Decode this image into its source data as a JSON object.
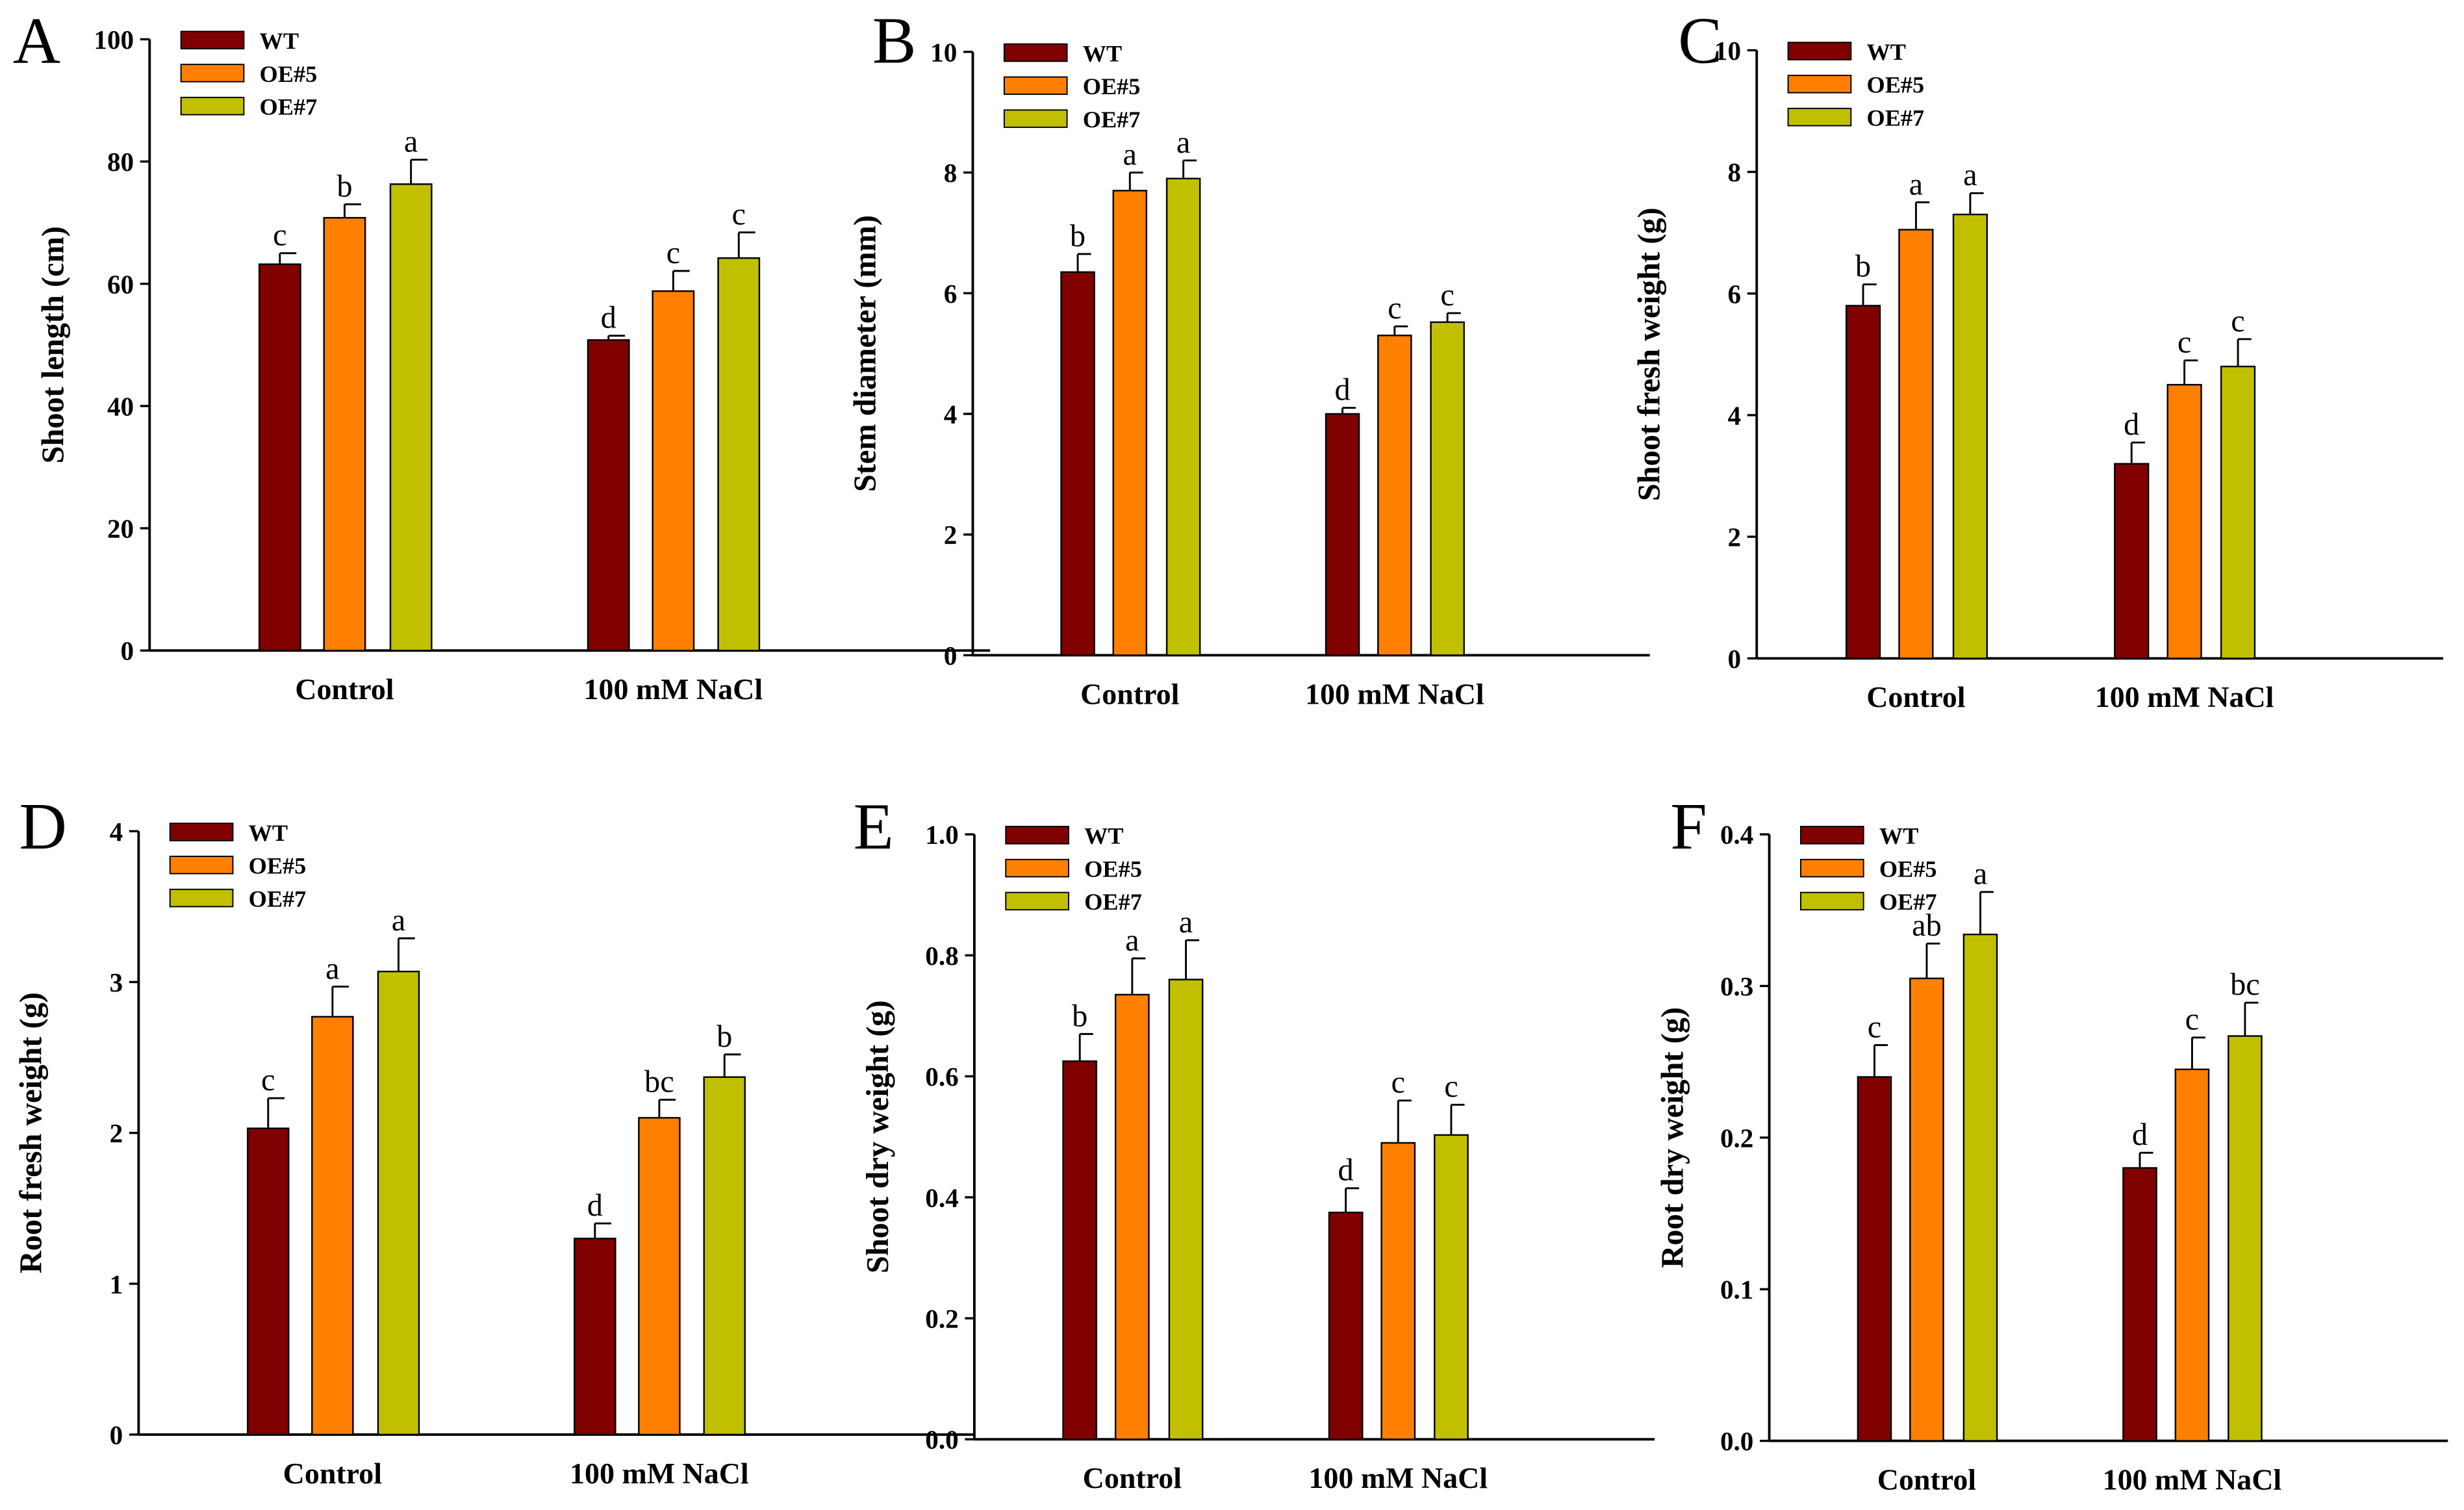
{
  "chart_data": [
    {
      "panel": "A",
      "type": "bar",
      "ylabel": "Shoot length (cm)",
      "ylim": [
        0,
        100
      ],
      "yticks": [
        0,
        20,
        40,
        60,
        80,
        100
      ],
      "ytick_labels": [
        "0",
        "20",
        "40",
        "60",
        "80",
        "100"
      ],
      "categories": [
        "Control",
        "100 mM NaCl"
      ],
      "series": [
        {
          "name": "WT",
          "values": [
            63.2,
            50.8
          ],
          "errors": [
            1.8,
            0.7
          ],
          "letters": [
            "c",
            "d"
          ]
        },
        {
          "name": "OE#5",
          "values": [
            70.8,
            58.8
          ],
          "errors": [
            2.2,
            3.3
          ],
          "letters": [
            "b",
            "c"
          ]
        },
        {
          "name": "OE#7",
          "values": [
            76.3,
            64.2
          ],
          "errors": [
            4.0,
            4.2
          ],
          "letters": [
            "a",
            "c"
          ]
        }
      ],
      "legend": "top-left"
    },
    {
      "panel": "B",
      "type": "bar",
      "ylabel": "Stem diameter (mm)",
      "ylim": [
        0,
        10
      ],
      "yticks": [
        0,
        2,
        4,
        6,
        8,
        10
      ],
      "ytick_labels": [
        "0",
        "2",
        "4",
        "6",
        "8",
        "10"
      ],
      "categories": [
        "Control",
        "100 mM NaCl"
      ],
      "series": [
        {
          "name": "WT",
          "values": [
            6.35,
            4.0
          ],
          "errors": [
            0.3,
            0.1
          ],
          "letters": [
            "b",
            "d"
          ]
        },
        {
          "name": "OE#5",
          "values": [
            7.7,
            5.3
          ],
          "errors": [
            0.3,
            0.15
          ],
          "letters": [
            "a",
            "c"
          ]
        },
        {
          "name": "OE#7",
          "values": [
            7.9,
            5.52
          ],
          "errors": [
            0.3,
            0.15
          ],
          "letters": [
            "a",
            "c"
          ]
        }
      ],
      "legend": "top-left"
    },
    {
      "panel": "C",
      "type": "bar",
      "ylabel": "Shoot fresh weight (g)",
      "ylim": [
        0,
        10
      ],
      "yticks": [
        0,
        2,
        4,
        6,
        8,
        10
      ],
      "ytick_labels": [
        "0",
        "2",
        "4",
        "6",
        "8",
        "10"
      ],
      "categories": [
        "Control",
        "100 mM NaCl"
      ],
      "series": [
        {
          "name": "WT",
          "values": [
            5.8,
            3.2
          ],
          "errors": [
            0.35,
            0.35
          ],
          "letters": [
            "b",
            "d"
          ]
        },
        {
          "name": "OE#5",
          "values": [
            7.05,
            4.5
          ],
          "errors": [
            0.45,
            0.4
          ],
          "letters": [
            "a",
            "c"
          ]
        },
        {
          "name": "OE#7",
          "values": [
            7.3,
            4.8
          ],
          "errors": [
            0.35,
            0.45
          ],
          "letters": [
            "a",
            "c"
          ]
        }
      ],
      "legend": "top-left"
    },
    {
      "panel": "D",
      "type": "bar",
      "ylabel": "Root fresh weight (g)",
      "ylim": [
        0,
        4
      ],
      "yticks": [
        0,
        1,
        2,
        3,
        4
      ],
      "ytick_labels": [
        "0",
        "1",
        "2",
        "3",
        "4"
      ],
      "categories": [
        "Control",
        "100 mM NaCl"
      ],
      "series": [
        {
          "name": "WT",
          "values": [
            2.03,
            1.3
          ],
          "errors": [
            0.2,
            0.1
          ],
          "letters": [
            "c",
            "d"
          ]
        },
        {
          "name": "OE#5",
          "values": [
            2.77,
            2.1
          ],
          "errors": [
            0.2,
            0.12
          ],
          "letters": [
            "a",
            "bc"
          ]
        },
        {
          "name": "OE#7",
          "values": [
            3.07,
            2.37
          ],
          "errors": [
            0.22,
            0.15
          ],
          "letters": [
            "a",
            "b"
          ]
        }
      ],
      "legend": "top-left"
    },
    {
      "panel": "E",
      "type": "bar",
      "ylabel": "Shoot dry weight (g)",
      "ylim": [
        0,
        1
      ],
      "yticks": [
        0,
        0.2,
        0.4,
        0.6,
        0.8,
        1.0
      ],
      "ytick_labels": [
        "0.0",
        "0.2",
        "0.4",
        "0.6",
        "0.8",
        "1.0"
      ],
      "categories": [
        "Control",
        "100 mM NaCl"
      ],
      "series": [
        {
          "name": "WT",
          "values": [
            0.625,
            0.375
          ],
          "errors": [
            0.045,
            0.04
          ],
          "letters": [
            "b",
            "d"
          ]
        },
        {
          "name": "OE#5",
          "values": [
            0.735,
            0.49
          ],
          "errors": [
            0.06,
            0.07
          ],
          "letters": [
            "a",
            "c"
          ]
        },
        {
          "name": "OE#7",
          "values": [
            0.76,
            0.503
          ],
          "errors": [
            0.065,
            0.05
          ],
          "letters": [
            "a",
            "c"
          ]
        }
      ],
      "legend": "top-left"
    },
    {
      "panel": "F",
      "type": "bar",
      "ylabel": "Root dry weight (g)",
      "ylim": [
        0,
        0.4
      ],
      "yticks": [
        0,
        0.1,
        0.2,
        0.3,
        0.4
      ],
      "ytick_labels": [
        "0.0",
        "0.1",
        "0.2",
        "0.3",
        "0.4"
      ],
      "categories": [
        "Control",
        "100 mM NaCl"
      ],
      "series": [
        {
          "name": "WT",
          "values": [
            0.24,
            0.18
          ],
          "errors": [
            0.021,
            0.01
          ],
          "letters": [
            "c",
            "d"
          ]
        },
        {
          "name": "OE#5",
          "values": [
            0.305,
            0.245
          ],
          "errors": [
            0.023,
            0.021
          ],
          "letters": [
            "ab",
            "c"
          ]
        },
        {
          "name": "OE#7",
          "values": [
            0.334,
            0.267
          ],
          "errors": [
            0.028,
            0.022
          ],
          "letters": [
            "a",
            "bc"
          ]
        }
      ],
      "legend": "top-left"
    }
  ],
  "colors": {
    "WT": "#800000",
    "OE#5": "#ff8000",
    "OE#7": "#c0c000"
  }
}
